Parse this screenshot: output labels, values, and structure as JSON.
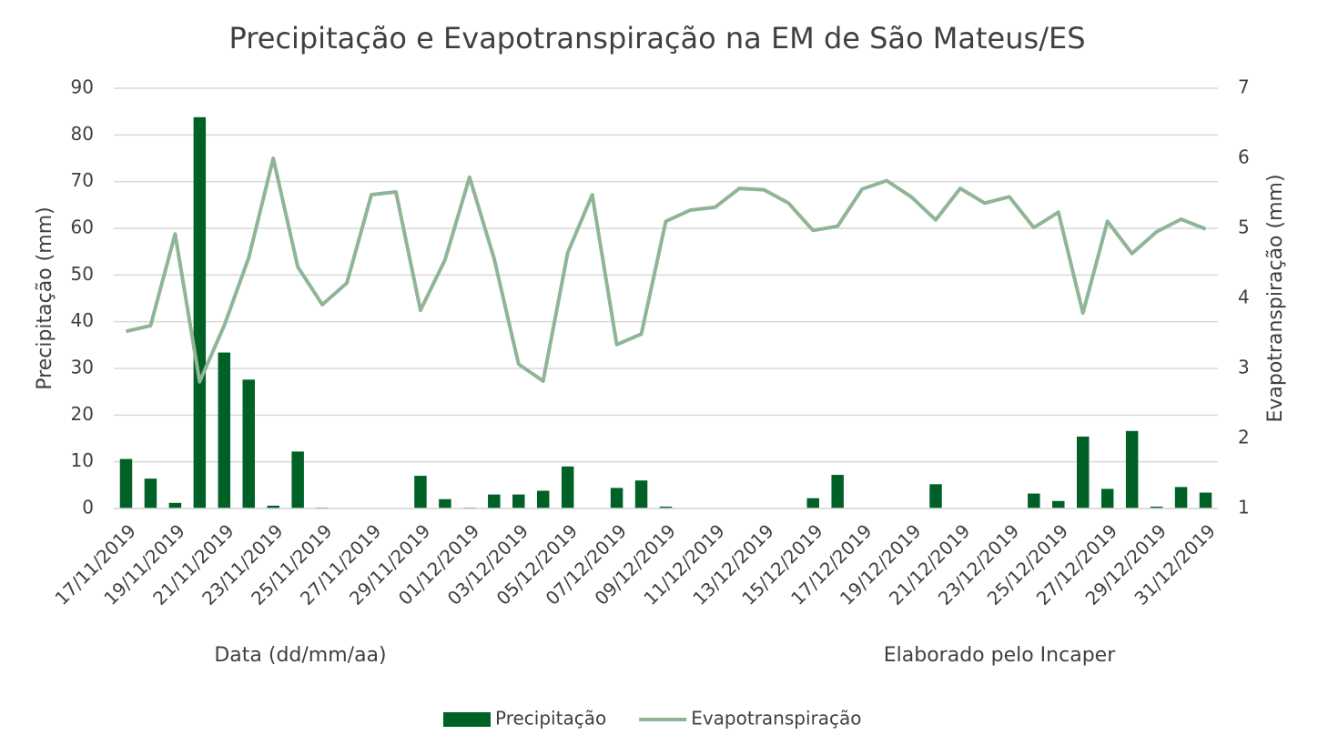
{
  "chart_data": {
    "type": "bar-line",
    "title": "Precipitação e Evapotranspiração na EM de São Mateus/ES",
    "y_label": "Precipitação (mm)",
    "y2_label": "Evapotranspiração (mm)",
    "annotations": [
      "Data (dd/mm/aa)",
      "Elaborado pelo Incaper"
    ],
    "categories": [
      "17/11/2019",
      null,
      "19/11/2019",
      null,
      "21/11/2019",
      null,
      "23/11/2019",
      null,
      "25/11/2019",
      null,
      "27/11/2019",
      null,
      "29/11/2019",
      null,
      "01/12/2019",
      null,
      "03/12/2019",
      null,
      "05/12/2019",
      null,
      "07/12/2019",
      null,
      "09/12/2019",
      null,
      "11/12/2019",
      null,
      "13/12/2019",
      null,
      "15/12/2019",
      null,
      "17/12/2019",
      null,
      "19/12/2019",
      null,
      "21/12/2019",
      null,
      "23/12/2019",
      null,
      "25/12/2019",
      null,
      "27/12/2019",
      null,
      "29/12/2019",
      null,
      "31/12/2019"
    ],
    "series": [
      {
        "name": "Precipitação",
        "color": "#006126",
        "type": "bar",
        "axis": "y",
        "values": [
          10.6,
          6.4,
          1.2,
          83.8,
          33.4,
          27.6,
          0.6,
          12.2,
          0.2,
          0,
          0,
          0,
          7.0,
          2.0,
          0.2,
          3.0,
          3.0,
          3.8,
          9.0,
          0,
          4.4,
          6.0,
          0.4,
          0,
          0,
          0,
          0,
          0,
          2.2,
          7.2,
          0,
          0,
          0,
          5.2,
          0,
          0,
          0,
          3.2,
          1.6,
          15.4,
          4.2,
          16.6,
          0.4,
          4.6,
          3.4
        ]
      },
      {
        "name": "Evapotranspiração",
        "color": "#8fb596",
        "type": "line",
        "axis": "y2",
        "values": [
          3.53,
          3.61,
          4.92,
          2.81,
          3.61,
          4.58,
          6.0,
          4.45,
          3.91,
          4.22,
          5.48,
          5.52,
          3.83,
          4.55,
          5.73,
          4.57,
          3.06,
          2.82,
          4.65,
          5.48,
          3.34,
          3.49,
          5.1,
          5.26,
          5.3,
          5.57,
          5.55,
          5.36,
          4.97,
          5.03,
          5.56,
          5.68,
          5.45,
          5.12,
          5.57,
          5.36,
          5.45,
          5.01,
          5.23,
          3.79,
          5.1,
          4.64,
          4.95,
          5.13,
          4.99
        ]
      }
    ],
    "ylim": [
      0,
      90
    ],
    "yticks": [
      0,
      10,
      20,
      30,
      40,
      50,
      60,
      70,
      80,
      90
    ],
    "y2lim": [
      1,
      7
    ],
    "y2ticks": [
      1,
      2,
      3,
      4,
      5,
      6,
      7
    ],
    "grid": true,
    "legend": "bottom"
  }
}
